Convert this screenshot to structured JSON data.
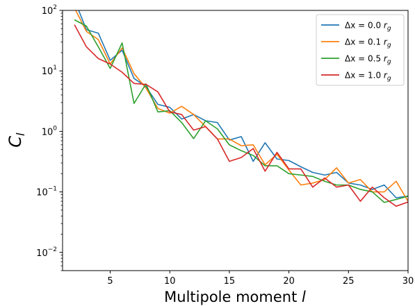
{
  "chart_data": {
    "type": "line",
    "xlabel": "Multipole moment l",
    "ylabel": "C_l",
    "xlim": [
      1,
      30
    ],
    "ylim": [
      0.005,
      100
    ],
    "yscale": "log",
    "grid": false,
    "legend_position": "top-right",
    "x_ticks": [
      5,
      10,
      15,
      20,
      25,
      30
    ],
    "y_ticks": [
      {
        "value": 0.01,
        "base": "10",
        "exp": "−2"
      },
      {
        "value": 0.1,
        "base": "10",
        "exp": "−1"
      },
      {
        "value": 1,
        "base": "10",
        "exp": "0"
      },
      {
        "value": 10,
        "base": "10",
        "exp": "1"
      },
      {
        "value": 100,
        "base": "10",
        "exp": "2"
      }
    ],
    "x": [
      2,
      3,
      4,
      5,
      6,
      7,
      8,
      9,
      10,
      11,
      12,
      13,
      14,
      15,
      16,
      17,
      18,
      19,
      20,
      21,
      22,
      23,
      24,
      25,
      26,
      27,
      28,
      29,
      30
    ],
    "series": [
      {
        "name": "Δx = 0.0 r_g",
        "label_prefix": "Δx = ",
        "label_value": "0.0",
        "label_unit": "r",
        "label_sub": "g",
        "color": "#1f77b4",
        "values": [
          150,
          48,
          42,
          15,
          22,
          7.5,
          5.5,
          2.8,
          2.5,
          1.6,
          1.9,
          1.5,
          1.4,
          0.72,
          0.82,
          0.32,
          0.65,
          0.35,
          0.33,
          0.26,
          0.21,
          0.19,
          0.21,
          0.14,
          0.13,
          0.11,
          0.13,
          0.08,
          0.085
        ]
      },
      {
        "name": "Δx = 0.1 r_g",
        "label_prefix": "Δx = ",
        "label_value": "0.1",
        "label_unit": "r",
        "label_sub": "g",
        "color": "#ff7f0e",
        "values": [
          110,
          45,
          33,
          13,
          24,
          9,
          5.2,
          2.4,
          2.0,
          2.6,
          1.9,
          1.2,
          0.75,
          0.75,
          0.58,
          0.6,
          0.28,
          0.42,
          0.23,
          0.13,
          0.14,
          0.16,
          0.25,
          0.14,
          0.16,
          0.1,
          0.1,
          0.15,
          0.07
        ]
      },
      {
        "name": "Δx = 0.5 r_g",
        "label_prefix": "Δx = ",
        "label_value": "0.5",
        "label_unit": "r",
        "label_sub": "g",
        "color": "#2ca02c",
        "values": [
          70,
          55,
          25,
          11,
          29,
          2.9,
          6.1,
          2.1,
          2.2,
          1.4,
          0.76,
          1.5,
          1.1,
          0.6,
          0.48,
          0.4,
          0.27,
          0.27,
          0.2,
          0.19,
          0.18,
          0.15,
          0.13,
          0.13,
          0.11,
          0.1,
          0.067,
          0.075,
          0.085
        ]
      },
      {
        "name": "Δx = 1.0 r_g",
        "label_prefix": "Δx = ",
        "label_value": "1.0",
        "label_unit": "r",
        "label_sub": "g",
        "color": "#d62728",
        "values": [
          58,
          25,
          16,
          13,
          9.5,
          6.2,
          6.0,
          4.5,
          2.1,
          1.9,
          1.05,
          1.2,
          0.75,
          0.32,
          0.37,
          0.52,
          0.22,
          0.45,
          0.24,
          0.24,
          0.12,
          0.17,
          0.12,
          0.13,
          0.07,
          0.12,
          0.08,
          0.058,
          0.068
        ]
      }
    ]
  }
}
